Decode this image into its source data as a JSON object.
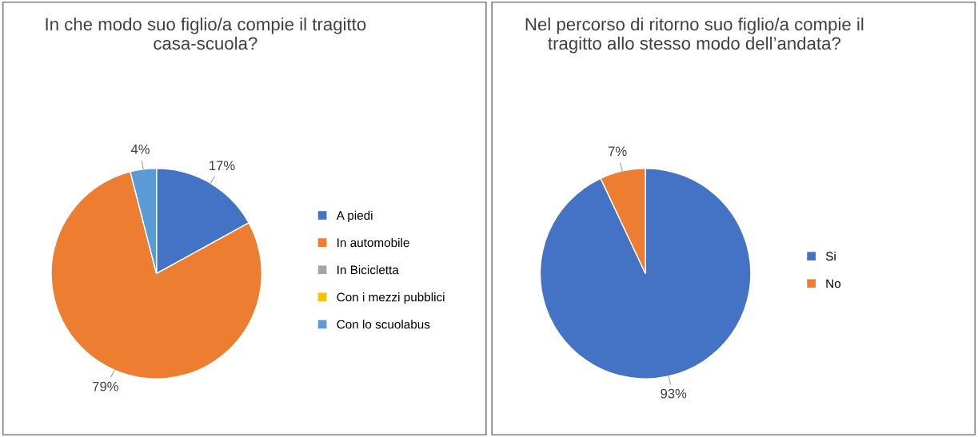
{
  "chart_data": [
    {
      "type": "pie",
      "title": "In che modo suo figlio/a compie il tragitto casa-scuola?",
      "categories": [
        "A piedi",
        "In automobile",
        "In Bicicletta",
        "Con i mezzi pubblici",
        "Con lo scuolabus"
      ],
      "values": [
        17,
        79,
        0,
        0,
        4
      ],
      "colors": [
        "#4472c4",
        "#ed7d31",
        "#a5a5a5",
        "#ffc000",
        "#5b9bd5"
      ],
      "value_labels": [
        "17%",
        "79%",
        null,
        null,
        "4%"
      ],
      "legend": "right"
    },
    {
      "type": "pie",
      "title": "Nel percorso di ritorno suo figlio/a compie il tragitto allo stesso modo dell’andata?",
      "categories": [
        "Si",
        "No"
      ],
      "values": [
        93,
        7
      ],
      "colors": [
        "#4472c4",
        "#ed7d31"
      ],
      "value_labels": [
        "93%",
        "7%"
      ],
      "legend": "right"
    }
  ]
}
